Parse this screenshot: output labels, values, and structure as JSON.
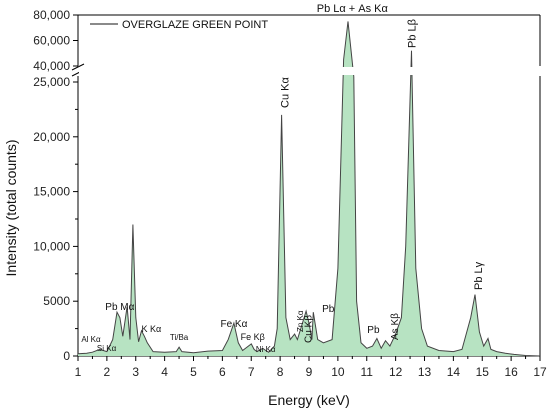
{
  "chart_data": {
    "type": "area",
    "legend": {
      "label": "OVERGLAZE GREEN POINT",
      "position": "top-left"
    },
    "xlabel": "Energy (keV)",
    "ylabel": "Intensity (total counts)",
    "xlim": [
      1,
      17
    ],
    "ylim_lower": [
      0,
      25000
    ],
    "ylim_upper": [
      40000,
      80000
    ],
    "axis_break": true,
    "grid": false,
    "colors": {
      "fill": "#b7e3c2",
      "line": "#444444"
    },
    "x_ticks": [
      "1",
      "2",
      "3",
      "4",
      "5",
      "6",
      "7",
      "8",
      "9",
      "10",
      "11",
      "12",
      "13",
      "14",
      "15",
      "16",
      "17"
    ],
    "y_ticks_lower": [
      {
        "value": 0,
        "label": "0"
      },
      {
        "value": 5000,
        "label": "5000"
      },
      {
        "value": 10000,
        "label": "10,000"
      },
      {
        "value": 15000,
        "label": "15,000"
      },
      {
        "value": 20000,
        "label": "20,000"
      },
      {
        "value": 25000,
        "label": "25,000"
      }
    ],
    "y_ticks_upper": [
      {
        "value": 40000,
        "label": "40,000"
      },
      {
        "value": 60000,
        "label": "60,000"
      },
      {
        "value": 80000,
        "label": "80,000"
      }
    ],
    "series": [
      {
        "x": [
          1.0,
          1.3,
          1.5,
          1.75,
          2.0,
          2.2,
          2.35,
          2.45,
          2.55,
          2.7,
          2.8,
          2.9,
          3.0,
          3.1,
          3.2,
          3.3,
          3.4,
          3.6,
          4.0,
          4.4,
          4.5,
          4.6,
          5.0,
          5.5,
          6.0,
          6.2,
          6.4,
          6.55,
          6.7,
          7.0,
          7.1,
          7.2,
          7.4,
          7.5,
          7.6,
          7.8,
          7.9,
          8.05,
          8.2,
          8.35,
          8.5,
          8.6,
          8.9,
          9.0,
          9.1,
          9.15,
          9.3,
          9.5,
          9.8,
          10.0,
          10.2,
          10.35,
          10.55,
          10.65,
          10.8,
          11.0,
          11.2,
          11.35,
          11.5,
          11.65,
          11.8,
          12.0,
          12.2,
          12.35,
          12.55,
          12.7,
          12.9,
          13.1,
          13.5,
          14.0,
          14.3,
          14.6,
          14.75,
          14.9,
          15.05,
          15.2,
          15.3,
          15.5,
          15.8,
          16.1,
          16.5,
          17.0
        ],
        "y": [
          200,
          250,
          350,
          600,
          400,
          1500,
          4000,
          3500,
          1800,
          4500,
          1500,
          12000,
          3500,
          1300,
          2300,
          1800,
          1200,
          400,
          350,
          400,
          800,
          400,
          300,
          450,
          500,
          1500,
          3000,
          1200,
          500,
          1100,
          600,
          400,
          700,
          500,
          350,
          900,
          2500,
          22000,
          3500,
          1500,
          2000,
          1500,
          4100,
          3000,
          1500,
          4000,
          1500,
          1200,
          1500,
          8000,
          45000,
          75000,
          30000,
          5000,
          1200,
          700,
          900,
          1600,
          700,
          1400,
          900,
          2000,
          3500,
          10000,
          52000,
          8000,
          2500,
          900,
          500,
          400,
          600,
          3500,
          5600,
          2200,
          900,
          1600,
          600,
          400,
          250,
          150,
          50,
          0
        ]
      }
    ],
    "annotations": [
      {
        "text": "Pb Lα + As Kα",
        "x": 10.5
      },
      {
        "text": "Pb Lβ",
        "x": 12.55
      },
      {
        "text": "Cu Kα",
        "x": 8.05
      },
      {
        "text": "Pb Lγ",
        "x": 14.75
      },
      {
        "text": "Pb Mα",
        "x": 2.45
      },
      {
        "text": "K Kα",
        "x": 3.3
      },
      {
        "text": "Al Kα",
        "x": 1.45
      },
      {
        "text": "Si Kα",
        "x": 1.85
      },
      {
        "text": "Ti/Ba",
        "x": 4.5
      },
      {
        "text": "Fe Kα",
        "x": 6.4
      },
      {
        "text": "Fe Kβ",
        "x": 7.05
      },
      {
        "text": "Ni Kα",
        "x": 7.5
      },
      {
        "text": "Zn Kα",
        "x": 8.65
      },
      {
        "text": "Cu Kβ",
        "x": 8.95
      },
      {
        "text": "Pb",
        "x": 9.25
      },
      {
        "text": "Pb",
        "x": 11.3
      },
      {
        "text": "As Kβ",
        "x": 11.8
      }
    ]
  }
}
